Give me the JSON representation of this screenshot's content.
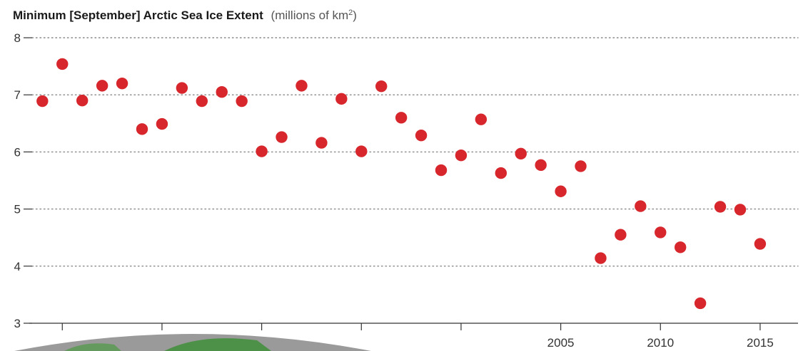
{
  "chart_data": {
    "type": "scatter",
    "title": "Minimum [September] Arctic Sea Ice Extent",
    "subtitle_prefix": "(millions of km",
    "subtitle_sup": "2",
    "subtitle_suffix": ")",
    "xlabel": "",
    "ylabel": "",
    "ylim": [
      3,
      8
    ],
    "xlim": [
      1978.2,
      2016.9
    ],
    "y_ticks": [
      8,
      7,
      6,
      5,
      4,
      3
    ],
    "y_tick_labels": [
      "8",
      "7",
      "6",
      "5",
      "4",
      "3"
    ],
    "x_major_ticks": [
      1980,
      1985,
      1990,
      1995,
      2000,
      2005,
      2010,
      2015
    ],
    "x_tick_labels": [
      {
        "x": 2005,
        "label": "2005"
      },
      {
        "x": 2010,
        "label": "2010"
      },
      {
        "x": 2015,
        "label": "2015"
      }
    ],
    "grid": "horizontal dotted",
    "series": [
      {
        "color": "#d7262c",
        "points": [
          {
            "x": 1979,
            "y": 6.89
          },
          {
            "x": 1980,
            "y": 7.54
          },
          {
            "x": 1981,
            "y": 6.9
          },
          {
            "x": 1982,
            "y": 7.16
          },
          {
            "x": 1983,
            "y": 7.2
          },
          {
            "x": 1984,
            "y": 6.4
          },
          {
            "x": 1985,
            "y": 6.49
          },
          {
            "x": 1986,
            "y": 7.12
          },
          {
            "x": 1987,
            "y": 6.89
          },
          {
            "x": 1988,
            "y": 7.05
          },
          {
            "x": 1989,
            "y": 6.89
          },
          {
            "x": 1990,
            "y": 6.01
          },
          {
            "x": 1991,
            "y": 6.26
          },
          {
            "x": 1992,
            "y": 7.16
          },
          {
            "x": 1993,
            "y": 6.16
          },
          {
            "x": 1994,
            "y": 6.93
          },
          {
            "x": 1995,
            "y": 6.01
          },
          {
            "x": 1996,
            "y": 7.15
          },
          {
            "x": 1997,
            "y": 6.6
          },
          {
            "x": 1998,
            "y": 6.29
          },
          {
            "x": 1999,
            "y": 5.68
          },
          {
            "x": 2000,
            "y": 5.94
          },
          {
            "x": 2001,
            "y": 6.57
          },
          {
            "x": 2002,
            "y": 5.63
          },
          {
            "x": 2003,
            "y": 5.97
          },
          {
            "x": 2004,
            "y": 5.77
          },
          {
            "x": 2005,
            "y": 5.31
          },
          {
            "x": 2006,
            "y": 5.75
          },
          {
            "x": 2007,
            "y": 4.14
          },
          {
            "x": 2008,
            "y": 4.55
          },
          {
            "x": 2009,
            "y": 5.05
          },
          {
            "x": 2010,
            "y": 4.59
          },
          {
            "x": 2011,
            "y": 4.33
          },
          {
            "x": 2012,
            "y": 3.35
          },
          {
            "x": 2013,
            "y": 5.04
          },
          {
            "x": 2014,
            "y": 4.99
          },
          {
            "x": 2015,
            "y": 4.39
          }
        ]
      }
    ]
  },
  "colors": {
    "point": "#d7262c",
    "axis": "#333333",
    "grid": "#888888",
    "title": "#1a1a1a",
    "subtitle": "#555555",
    "globe_gray": "#9a9a9a",
    "globe_green": "#3f8f3a"
  }
}
